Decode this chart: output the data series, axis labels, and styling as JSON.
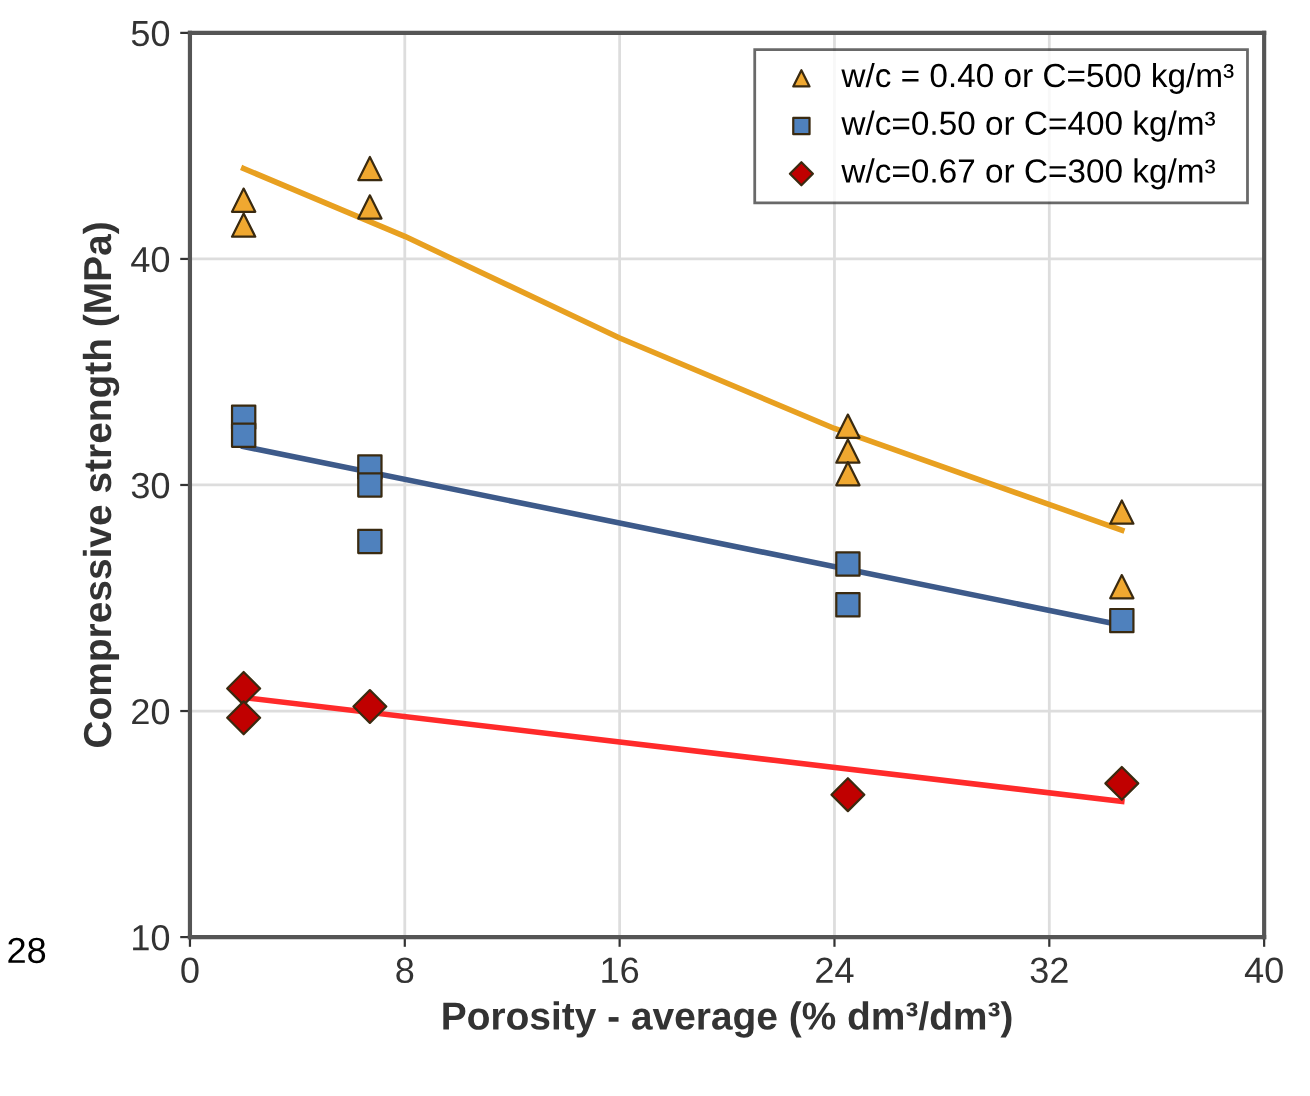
{
  "chart_data": {
    "type": "scatter",
    "xlabel": "Porosity - average (% dm³/dm³)",
    "ylabel": "Compressive strength (MPa)",
    "xlim": [
      0,
      40
    ],
    "xticks": [
      0,
      8,
      16,
      24,
      32,
      40
    ],
    "ylim": [
      10,
      50
    ],
    "yticks": [
      10,
      20,
      30,
      40,
      50
    ],
    "grid": true,
    "legend": "top right",
    "annotations": [
      "28"
    ],
    "series": [
      {
        "name": "w/c = 0.40 or C=500 kg/m³",
        "color": "#f0a830",
        "marker": "triangle",
        "x": [
          2,
          2,
          6.7,
          6.7,
          24.5,
          24.5,
          24.5,
          34.7,
          34.7
        ],
        "values": [
          42.6,
          41.5,
          44.0,
          42.3,
          32.6,
          31.5,
          30.5,
          28.8,
          25.5
        ]
      },
      {
        "name": "w/c=0.50 or C=400 kg/m³",
        "color": "#4f81bd",
        "marker": "square",
        "x": [
          2,
          2,
          6.7,
          6.7,
          6.7,
          24.5,
          24.5,
          34.7
        ],
        "values": [
          33.0,
          32.2,
          30.8,
          30.0,
          27.5,
          26.5,
          24.7,
          24.0
        ]
      },
      {
        "name": "w/c=0.67 or C=300 kg/m³",
        "color": "#c00000",
        "marker": "diamond",
        "x": [
          2,
          2,
          6.7,
          24.5,
          34.7
        ],
        "values": [
          21.0,
          19.7,
          20.2,
          16.3,
          16.8
        ]
      },
      {
        "type": "line",
        "color": "#e8a020",
        "marker": "none",
        "x": [
          2,
          8,
          16,
          24,
          34.7
        ],
        "values": [
          44.0,
          41.0,
          36.5,
          32.5,
          28.0
        ]
      },
      {
        "type": "line",
        "color": "#3d5a8a",
        "marker": "none",
        "x": [
          2,
          34.7
        ],
        "values": [
          31.7,
          23.8
        ]
      },
      {
        "type": "line",
        "color": "#ff2a2a",
        "marker": "none",
        "x": [
          2,
          34.7
        ],
        "values": [
          20.6,
          16.0
        ]
      }
    ]
  }
}
